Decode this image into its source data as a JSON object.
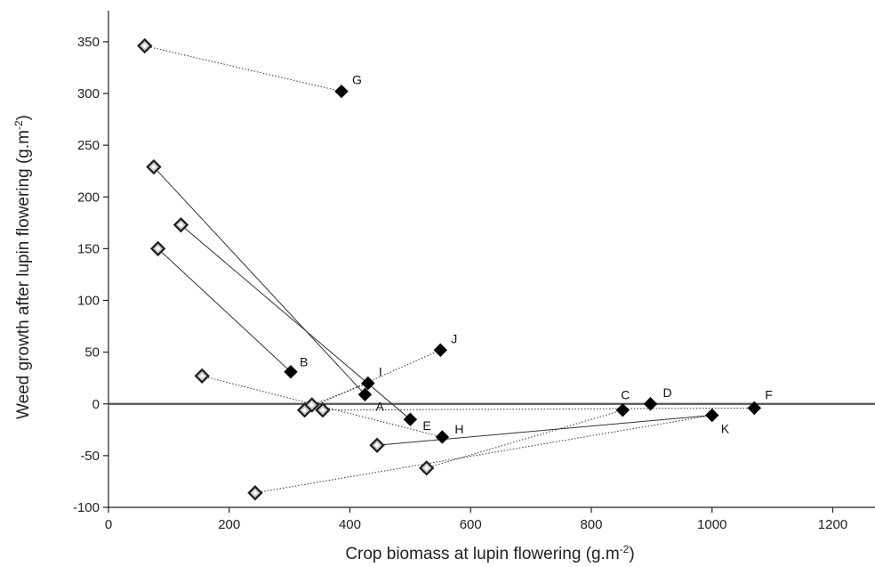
{
  "chart_data": {
    "type": "scatter",
    "title": "",
    "xlabel": "Crop biomass at lupin flowering (g.m",
    "xlabel_sup": "-2",
    "xlabel_close": ")",
    "ylabel": "Weed growth after lupin flowering (g.m",
    "ylabel_sup": "-2",
    "ylabel_close": ")",
    "xlim": [
      0,
      1270
    ],
    "ylim": [
      -100,
      380
    ],
    "x_ticks": [
      0,
      200,
      400,
      600,
      800,
      1000,
      1200
    ],
    "y_ticks": [
      -100,
      -50,
      0,
      50,
      100,
      150,
      200,
      250,
      300,
      350
    ],
    "zero_line": true,
    "grid": false,
    "legend": "none",
    "series": [
      {
        "style": "open-diamond",
        "color": "#ffffff",
        "stroke": "#222222",
        "points": [
          [
            60,
            346
          ],
          [
            75,
            229
          ],
          [
            120,
            173
          ],
          [
            82,
            150
          ],
          [
            155,
            27
          ],
          [
            325,
            -6
          ],
          [
            337,
            -1
          ],
          [
            355,
            -6
          ],
          [
            445,
            -40
          ],
          [
            527,
            -62
          ],
          [
            243,
            -86
          ]
        ]
      },
      {
        "style": "filled-diamond",
        "color": "#000000",
        "points": [
          [
            386,
            302
          ],
          [
            302,
            31
          ],
          [
            430,
            20
          ],
          [
            425,
            9
          ],
          [
            550,
            52
          ],
          [
            500,
            -15
          ],
          [
            553,
            -32
          ],
          [
            852,
            -6
          ],
          [
            898,
            0
          ],
          [
            1000,
            -11
          ],
          [
            1070,
            -4
          ]
        ]
      }
    ],
    "connections": [
      {
        "from": [
          60,
          346
        ],
        "to": [
          386,
          302
        ],
        "style": "dotted"
      },
      {
        "from": [
          75,
          229
        ],
        "to": [
          425,
          9
        ],
        "style": "solid"
      },
      {
        "from": [
          120,
          173
        ],
        "to": [
          500,
          -15
        ],
        "style": "solid"
      },
      {
        "from": [
          82,
          150
        ],
        "to": [
          302,
          31
        ],
        "style": "solid"
      },
      {
        "from": [
          155,
          27
        ],
        "to": [
          553,
          -32
        ],
        "style": "dotted"
      },
      {
        "from": [
          325,
          -6
        ],
        "to": [
          550,
          52
        ],
        "style": "dotted"
      },
      {
        "from": [
          337,
          -1
        ],
        "to": [
          430,
          20
        ],
        "style": "dotted"
      },
      {
        "from": [
          355,
          -6
        ],
        "to": [
          1070,
          -4
        ],
        "style": "dotted"
      },
      {
        "from": [
          445,
          -40
        ],
        "to": [
          1000,
          -11
        ],
        "style": "solid"
      },
      {
        "from": [
          527,
          -62
        ],
        "to": [
          852,
          -6
        ],
        "style": "dotted"
      },
      {
        "from": [
          243,
          -86
        ],
        "to": [
          1000,
          -11
        ],
        "style": "dotted"
      }
    ],
    "point_labels": [
      {
        "text": "G",
        "x": 386,
        "y": 302
      },
      {
        "text": "B",
        "x": 302,
        "y": 31
      },
      {
        "text": "I",
        "x": 430,
        "y": 20
      },
      {
        "text": "A",
        "x": 425,
        "y": 9
      },
      {
        "text": "J",
        "x": 550,
        "y": 52
      },
      {
        "text": "E",
        "x": 500,
        "y": -15
      },
      {
        "text": "H",
        "x": 553,
        "y": -32
      },
      {
        "text": "C",
        "x": 852,
        "y": -6
      },
      {
        "text": "D",
        "x": 898,
        "y": 0
      },
      {
        "text": "F",
        "x": 1070,
        "y": -4
      },
      {
        "text": "K",
        "x": 1000,
        "y": -11
      }
    ]
  }
}
